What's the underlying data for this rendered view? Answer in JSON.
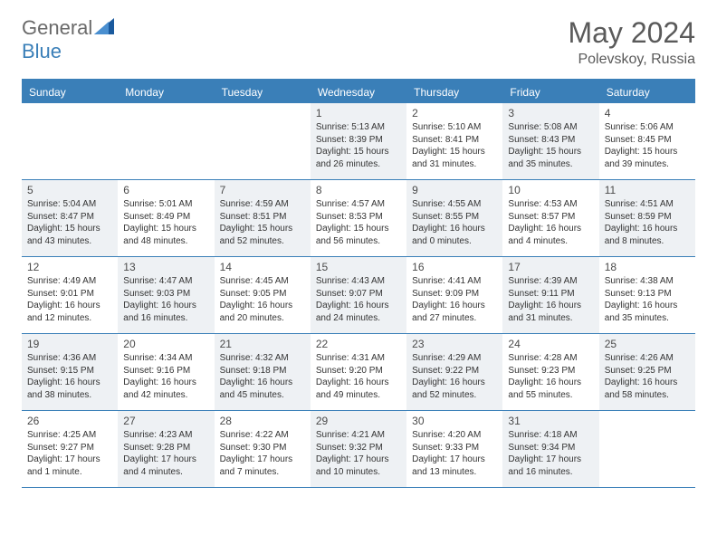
{
  "logo": {
    "text1": "General",
    "text2": "Blue"
  },
  "title": "May 2024",
  "location": "Polevskoy, Russia",
  "colors": {
    "accent": "#3a7fb8",
    "shaded": "#eef1f4",
    "text_dark": "#333333",
    "text_grey": "#5a5a5a"
  },
  "dayNames": [
    "Sunday",
    "Monday",
    "Tuesday",
    "Wednesday",
    "Thursday",
    "Friday",
    "Saturday"
  ],
  "weeks": [
    [
      {
        "day": "",
        "lines": []
      },
      {
        "day": "",
        "lines": []
      },
      {
        "day": "",
        "lines": []
      },
      {
        "day": "1",
        "shaded": true,
        "lines": [
          "Sunrise: 5:13 AM",
          "Sunset: 8:39 PM",
          "Daylight: 15 hours",
          "and 26 minutes."
        ]
      },
      {
        "day": "2",
        "lines": [
          "Sunrise: 5:10 AM",
          "Sunset: 8:41 PM",
          "Daylight: 15 hours",
          "and 31 minutes."
        ]
      },
      {
        "day": "3",
        "shaded": true,
        "lines": [
          "Sunrise: 5:08 AM",
          "Sunset: 8:43 PM",
          "Daylight: 15 hours",
          "and 35 minutes."
        ]
      },
      {
        "day": "4",
        "lines": [
          "Sunrise: 5:06 AM",
          "Sunset: 8:45 PM",
          "Daylight: 15 hours",
          "and 39 minutes."
        ]
      }
    ],
    [
      {
        "day": "5",
        "shaded": true,
        "lines": [
          "Sunrise: 5:04 AM",
          "Sunset: 8:47 PM",
          "Daylight: 15 hours",
          "and 43 minutes."
        ]
      },
      {
        "day": "6",
        "lines": [
          "Sunrise: 5:01 AM",
          "Sunset: 8:49 PM",
          "Daylight: 15 hours",
          "and 48 minutes."
        ]
      },
      {
        "day": "7",
        "shaded": true,
        "lines": [
          "Sunrise: 4:59 AM",
          "Sunset: 8:51 PM",
          "Daylight: 15 hours",
          "and 52 minutes."
        ]
      },
      {
        "day": "8",
        "lines": [
          "Sunrise: 4:57 AM",
          "Sunset: 8:53 PM",
          "Daylight: 15 hours",
          "and 56 minutes."
        ]
      },
      {
        "day": "9",
        "shaded": true,
        "lines": [
          "Sunrise: 4:55 AM",
          "Sunset: 8:55 PM",
          "Daylight: 16 hours",
          "and 0 minutes."
        ]
      },
      {
        "day": "10",
        "lines": [
          "Sunrise: 4:53 AM",
          "Sunset: 8:57 PM",
          "Daylight: 16 hours",
          "and 4 minutes."
        ]
      },
      {
        "day": "11",
        "shaded": true,
        "lines": [
          "Sunrise: 4:51 AM",
          "Sunset: 8:59 PM",
          "Daylight: 16 hours",
          "and 8 minutes."
        ]
      }
    ],
    [
      {
        "day": "12",
        "lines": [
          "Sunrise: 4:49 AM",
          "Sunset: 9:01 PM",
          "Daylight: 16 hours",
          "and 12 minutes."
        ]
      },
      {
        "day": "13",
        "shaded": true,
        "lines": [
          "Sunrise: 4:47 AM",
          "Sunset: 9:03 PM",
          "Daylight: 16 hours",
          "and 16 minutes."
        ]
      },
      {
        "day": "14",
        "lines": [
          "Sunrise: 4:45 AM",
          "Sunset: 9:05 PM",
          "Daylight: 16 hours",
          "and 20 minutes."
        ]
      },
      {
        "day": "15",
        "shaded": true,
        "lines": [
          "Sunrise: 4:43 AM",
          "Sunset: 9:07 PM",
          "Daylight: 16 hours",
          "and 24 minutes."
        ]
      },
      {
        "day": "16",
        "lines": [
          "Sunrise: 4:41 AM",
          "Sunset: 9:09 PM",
          "Daylight: 16 hours",
          "and 27 minutes."
        ]
      },
      {
        "day": "17",
        "shaded": true,
        "lines": [
          "Sunrise: 4:39 AM",
          "Sunset: 9:11 PM",
          "Daylight: 16 hours",
          "and 31 minutes."
        ]
      },
      {
        "day": "18",
        "lines": [
          "Sunrise: 4:38 AM",
          "Sunset: 9:13 PM",
          "Daylight: 16 hours",
          "and 35 minutes."
        ]
      }
    ],
    [
      {
        "day": "19",
        "shaded": true,
        "lines": [
          "Sunrise: 4:36 AM",
          "Sunset: 9:15 PM",
          "Daylight: 16 hours",
          "and 38 minutes."
        ]
      },
      {
        "day": "20",
        "lines": [
          "Sunrise: 4:34 AM",
          "Sunset: 9:16 PM",
          "Daylight: 16 hours",
          "and 42 minutes."
        ]
      },
      {
        "day": "21",
        "shaded": true,
        "lines": [
          "Sunrise: 4:32 AM",
          "Sunset: 9:18 PM",
          "Daylight: 16 hours",
          "and 45 minutes."
        ]
      },
      {
        "day": "22",
        "lines": [
          "Sunrise: 4:31 AM",
          "Sunset: 9:20 PM",
          "Daylight: 16 hours",
          "and 49 minutes."
        ]
      },
      {
        "day": "23",
        "shaded": true,
        "lines": [
          "Sunrise: 4:29 AM",
          "Sunset: 9:22 PM",
          "Daylight: 16 hours",
          "and 52 minutes."
        ]
      },
      {
        "day": "24",
        "lines": [
          "Sunrise: 4:28 AM",
          "Sunset: 9:23 PM",
          "Daylight: 16 hours",
          "and 55 minutes."
        ]
      },
      {
        "day": "25",
        "shaded": true,
        "lines": [
          "Sunrise: 4:26 AM",
          "Sunset: 9:25 PM",
          "Daylight: 16 hours",
          "and 58 minutes."
        ]
      }
    ],
    [
      {
        "day": "26",
        "lines": [
          "Sunrise: 4:25 AM",
          "Sunset: 9:27 PM",
          "Daylight: 17 hours",
          "and 1 minute."
        ]
      },
      {
        "day": "27",
        "shaded": true,
        "lines": [
          "Sunrise: 4:23 AM",
          "Sunset: 9:28 PM",
          "Daylight: 17 hours",
          "and 4 minutes."
        ]
      },
      {
        "day": "28",
        "lines": [
          "Sunrise: 4:22 AM",
          "Sunset: 9:30 PM",
          "Daylight: 17 hours",
          "and 7 minutes."
        ]
      },
      {
        "day": "29",
        "shaded": true,
        "lines": [
          "Sunrise: 4:21 AM",
          "Sunset: 9:32 PM",
          "Daylight: 17 hours",
          "and 10 minutes."
        ]
      },
      {
        "day": "30",
        "lines": [
          "Sunrise: 4:20 AM",
          "Sunset: 9:33 PM",
          "Daylight: 17 hours",
          "and 13 minutes."
        ]
      },
      {
        "day": "31",
        "shaded": true,
        "lines": [
          "Sunrise: 4:18 AM",
          "Sunset: 9:34 PM",
          "Daylight: 17 hours",
          "and 16 minutes."
        ]
      },
      {
        "day": "",
        "lines": []
      }
    ]
  ]
}
